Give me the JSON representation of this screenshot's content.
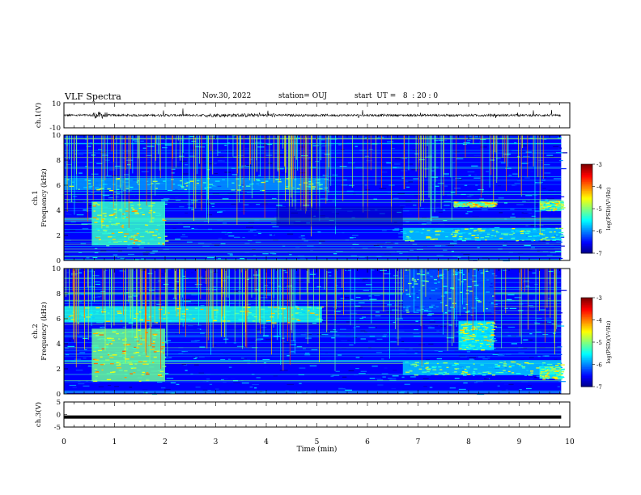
{
  "header": {
    "title": "VLF Spectra",
    "date": "Nov.30, 2022",
    "station": "station= OUJ",
    "start": "start  UT =   8  : 20 : 0"
  },
  "chart_data": [
    {
      "type": "line",
      "name": "ch1-waveform",
      "ylabel": "ch.1(V)",
      "ylim": [
        -10,
        10
      ],
      "yticks": [
        "10",
        "-10"
      ],
      "xlim": [
        0,
        9.83
      ],
      "trace": "black noisy waveform, amplitude about 1 V, bursts near 0.7 min and 2.9-4.1 min"
    },
    {
      "type": "heatmap",
      "name": "ch1-spectrogram",
      "ylabel": "ch.1\nFrequency  (kHz)",
      "ylim": [
        0,
        10
      ],
      "yticks": [
        "0",
        "2",
        "4",
        "6",
        "8",
        "10"
      ],
      "xlim": [
        0,
        9.83
      ],
      "colorbar": {
        "label": "log(PSD)(V²/Hz)",
        "range": [
          -7,
          -3
        ],
        "ticks": [
          "-3",
          "-4",
          "-5",
          "-6",
          "-7"
        ]
      },
      "features": [
        {
          "t0": 0,
          "t1": 5.2,
          "f0": 5.6,
          "f1": 6.6,
          "level": -5.4
        },
        {
          "t0": 0.55,
          "t1": 2.0,
          "f0": 1.2,
          "f1": 4.7,
          "level": -4.8
        },
        {
          "t0": 6.7,
          "t1": 9.83,
          "f0": 1.6,
          "f1": 2.6,
          "level": -5.2
        },
        {
          "t0": 7.7,
          "t1": 8.5,
          "f0": 4.3,
          "f1": 4.7,
          "level": -4.8
        },
        {
          "t0": 9.4,
          "t1": 9.83,
          "f0": 4.0,
          "f1": 4.8,
          "level": -5.0
        }
      ]
    },
    {
      "type": "heatmap",
      "name": "ch2-spectrogram",
      "ylabel": "ch.2\nFrequency  (kHz)",
      "ylim": [
        0,
        10
      ],
      "yticks": [
        "0",
        "2",
        "4",
        "6",
        "8",
        "10"
      ],
      "xlim": [
        0,
        9.83
      ],
      "colorbar": {
        "label": "log(PSD)(V²/Hz)",
        "range": [
          -7,
          -3
        ],
        "ticks": [
          "-3",
          "-4",
          "-5",
          "-6",
          "-7"
        ]
      },
      "features": [
        {
          "t0": 0,
          "t1": 5.1,
          "f0": 5.7,
          "f1": 7.0,
          "level": -4.9
        },
        {
          "t0": 0.55,
          "t1": 2.0,
          "f0": 1.0,
          "f1": 5.2,
          "level": -4.6
        },
        {
          "t0": 6.7,
          "t1": 9.83,
          "f0": 1.5,
          "f1": 2.6,
          "level": -5.2
        },
        {
          "t0": 6.7,
          "t1": 8.5,
          "f0": 6.5,
          "f1": 10.0,
          "level": -5.7
        },
        {
          "t0": 7.8,
          "t1": 8.5,
          "f0": 3.5,
          "f1": 5.8,
          "level": -5.0
        },
        {
          "t0": 9.4,
          "t1": 9.83,
          "f0": 1.2,
          "f1": 2.2,
          "level": -5.0
        }
      ]
    },
    {
      "type": "line",
      "name": "ch3-waveform",
      "ylabel": "ch.3(V)",
      "ylim": [
        -5,
        5
      ],
      "yticks": [
        "5",
        "0",
        "-5"
      ],
      "xlim": [
        0,
        9.83
      ],
      "trace": "thick flat black line near -1 V"
    }
  ],
  "xaxis": {
    "label": "Time  (min)",
    "range": [
      0,
      10
    ],
    "ticks": [
      "0",
      "1",
      "2",
      "3",
      "4",
      "5",
      "6",
      "7",
      "8",
      "9",
      "10"
    ]
  }
}
